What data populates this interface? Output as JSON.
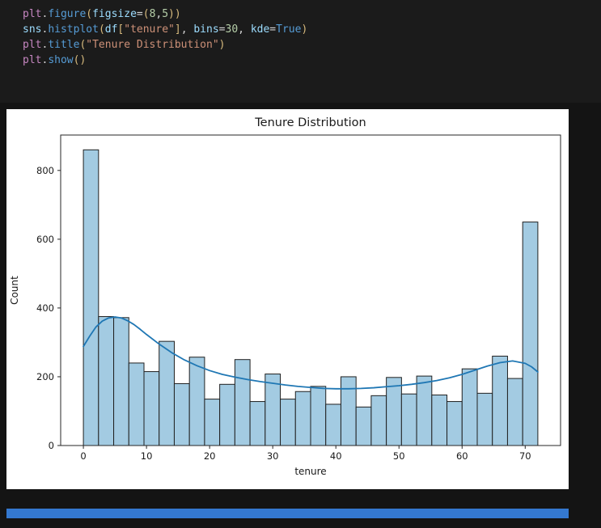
{
  "editor": {
    "colors": {
      "pink": "#C586C0",
      "blue": "#569CD6",
      "lightblue": "#9CDCFE",
      "orange": "#CE9178",
      "green": "#B5CEA8",
      "gold": "#D7BA7D",
      "fg": "#D4D4D4"
    },
    "lines": [
      [
        [
          "plt",
          "pink"
        ],
        [
          ".",
          "fg"
        ],
        [
          "figure",
          "blue"
        ],
        [
          "(",
          "gold"
        ],
        [
          "figsize",
          "lightblue"
        ],
        [
          "=",
          "fg"
        ],
        [
          "(",
          "gold"
        ],
        [
          "8",
          "green"
        ],
        [
          ",",
          "fg"
        ],
        [
          "5",
          "green"
        ],
        [
          "))",
          "gold"
        ]
      ],
      [
        [
          "sns",
          "lightblue"
        ],
        [
          ".",
          "fg"
        ],
        [
          "histplot",
          "blue"
        ],
        [
          "(",
          "gold"
        ],
        [
          "df",
          "lightblue"
        ],
        [
          "[",
          "gold"
        ],
        [
          "\"tenure\"",
          "orange"
        ],
        [
          "]",
          "gold"
        ],
        [
          ", ",
          "fg"
        ],
        [
          "bins",
          "lightblue"
        ],
        [
          "=",
          "fg"
        ],
        [
          "30",
          "green"
        ],
        [
          ", ",
          "fg"
        ],
        [
          "kde",
          "lightblue"
        ],
        [
          "=",
          "fg"
        ],
        [
          "True",
          "blue"
        ],
        [
          ")",
          "gold"
        ]
      ],
      [
        [
          "plt",
          "pink"
        ],
        [
          ".",
          "fg"
        ],
        [
          "title",
          "blue"
        ],
        [
          "(",
          "gold"
        ],
        [
          "\"Tenure Distribution\"",
          "orange"
        ],
        [
          ")",
          "gold"
        ]
      ],
      [
        [
          "plt",
          "pink"
        ],
        [
          ".",
          "fg"
        ],
        [
          "show",
          "blue"
        ],
        [
          "()",
          "gold"
        ]
      ]
    ]
  },
  "chart_data": {
    "type": "bar",
    "subtype": "histogram-with-kde",
    "title": "Tenure Distribution",
    "xlabel": "tenure",
    "ylabel": "Count",
    "xlim": [
      -3.6,
      75.6
    ],
    "ylim": [
      0,
      903
    ],
    "xticks": [
      0,
      10,
      20,
      30,
      40,
      50,
      60,
      70
    ],
    "yticks": [
      0,
      200,
      400,
      600,
      800
    ],
    "grid": false,
    "legend": "none",
    "bins": {
      "start": 0,
      "width": 2.4,
      "values": [
        860,
        375,
        372,
        240,
        215,
        303,
        180,
        257,
        135,
        178,
        250,
        128,
        208,
        135,
        157,
        172,
        120,
        200,
        112,
        145,
        198,
        150,
        202,
        147,
        128,
        223,
        152,
        260,
        195,
        650
      ]
    },
    "kde": {
      "x": [
        0,
        1,
        2,
        3,
        4,
        5,
        6,
        7,
        8,
        9,
        10,
        12,
        14,
        16,
        18,
        20,
        22,
        24,
        26,
        28,
        30,
        32,
        34,
        36,
        38,
        40,
        42,
        44,
        46,
        48,
        50,
        52,
        54,
        56,
        58,
        60,
        62,
        64,
        66,
        68,
        70,
        71,
        72
      ],
      "y": [
        288,
        318,
        345,
        362,
        371,
        374,
        371,
        363,
        352,
        338,
        323,
        295,
        270,
        249,
        232,
        218,
        207,
        199,
        192,
        186,
        181,
        176,
        172,
        169,
        166,
        165,
        165,
        166,
        168,
        171,
        174,
        178,
        183,
        189,
        197,
        207,
        219,
        231,
        241,
        246,
        239,
        229,
        214
      ]
    },
    "colors": {
      "bar_fill": "#a3cbe2",
      "bar_edge": "#202020",
      "kde_line": "#1f77b4",
      "axis": "#262626"
    }
  },
  "scrollbar": {
    "color": "#3478cf"
  }
}
